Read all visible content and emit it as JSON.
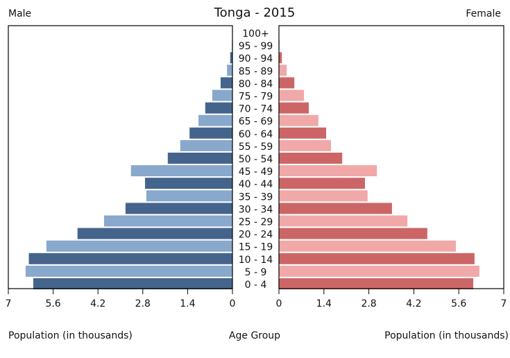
{
  "chart_data": {
    "type": "bar",
    "title": "Tonga - 2015",
    "left_label": "Male",
    "right_label": "Female",
    "xlabel_left": "Population (in thousands)",
    "xlabel_center": "Age Group",
    "xlabel_right": "Population (in thousands)",
    "xlim": [
      0,
      7
    ],
    "ticks": [
      "7",
      "5.6",
      "4.2",
      "2.8",
      "1.4",
      "0"
    ],
    "tick_values": [
      7,
      5.6,
      4.2,
      2.8,
      1.4,
      0
    ],
    "ticks_right": [
      "0",
      "1.4",
      "2.8",
      "4.2",
      "5.6",
      "7"
    ],
    "categories": [
      "100+",
      "95 - 99",
      "90 - 94",
      "85 - 89",
      "80 - 84",
      "75 - 79",
      "70 - 74",
      "65 - 69",
      "60 - 64",
      "55 - 59",
      "50 - 54",
      "45 - 49",
      "40 - 44",
      "35 - 39",
      "30 - 34",
      "25 - 29",
      "20 - 24",
      "15 - 19",
      "10 - 14",
      "5 - 9",
      "0 - 4"
    ],
    "series": [
      {
        "name": "Male",
        "values": [
          0,
          0.02,
          0.07,
          0.17,
          0.37,
          0.63,
          0.85,
          1.06,
          1.34,
          1.63,
          2.02,
          3.17,
          2.73,
          2.69,
          3.34,
          4.01,
          4.84,
          5.81,
          6.36,
          6.46,
          6.22
        ],
        "colors": [
          "#44648c",
          "#88a8cc"
        ]
      },
      {
        "name": "Female",
        "values": [
          0.01,
          0.02,
          0.09,
          0.24,
          0.48,
          0.78,
          0.93,
          1.23,
          1.47,
          1.62,
          1.97,
          3.05,
          2.68,
          2.76,
          3.52,
          4.0,
          4.62,
          5.51,
          6.09,
          6.24,
          6.05
        ],
        "colors": [
          "#cc6666",
          "#f0a8a8"
        ]
      }
    ]
  }
}
